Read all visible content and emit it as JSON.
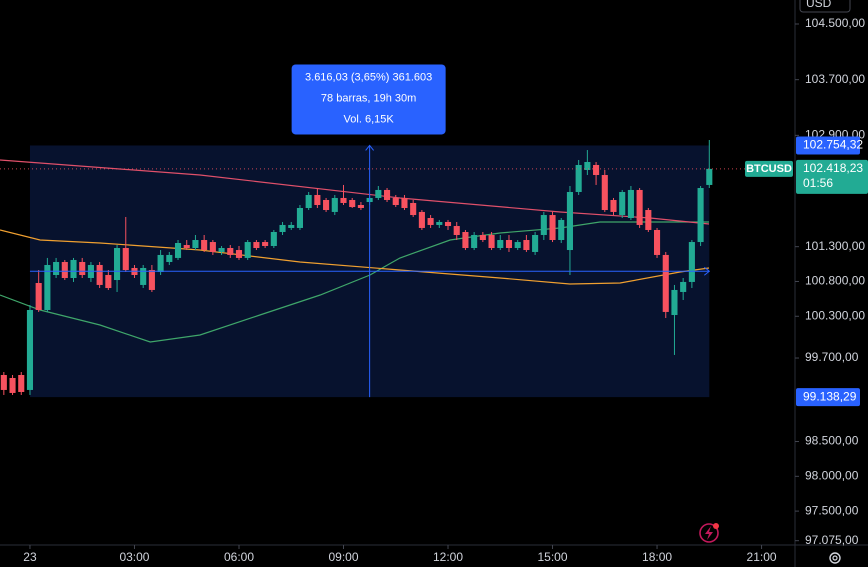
{
  "chart_data": {
    "type": "candlestick",
    "symbol": "BTCUSD",
    "currency": "USD",
    "countdown": "01:56",
    "up_color": "#22ab94",
    "down_color": "#f7525f",
    "x": [
      -0.75,
      -0.5,
      -0.25,
      0,
      0.25,
      0.5,
      0.75,
      1,
      1.25,
      1.5,
      1.75,
      2,
      2.25,
      2.5,
      2.75,
      3,
      3.25,
      3.5,
      3.75,
      4,
      4.25,
      4.5,
      4.75,
      5,
      5.25,
      5.5,
      5.75,
      6,
      6.25,
      6.5,
      6.75,
      7,
      7.25,
      7.5,
      7.75,
      8,
      8.25,
      8.5,
      8.75,
      9,
      9.25,
      9.5,
      9.75,
      10,
      10.25,
      10.5,
      10.75,
      11,
      11.25,
      11.5,
      11.75,
      12,
      12.25,
      12.5,
      12.75,
      13,
      13.25,
      13.5,
      13.75,
      14,
      14.25,
      14.5,
      14.75,
      15,
      15.25,
      15.5,
      15.75,
      16,
      16.25,
      16.5,
      16.75,
      17,
      17.25,
      17.5,
      17.75,
      18,
      18.25,
      18.5,
      18.75,
      19,
      19.25,
      19.5
    ],
    "open": [
      99456,
      99413,
      99456,
      99241,
      100778,
      100390,
      100893,
      101080,
      100850,
      101080,
      100850,
      101037,
      100893,
      100821,
      101281,
      100994,
      100750,
      100965,
      100936,
      101080,
      101138,
      101324,
      101281,
      101396,
      101367,
      101224,
      101281,
      101252,
      101138,
      101367,
      101367,
      101310,
      101511,
      101569,
      101569,
      101856,
      102043,
      101971,
      101799,
      102000,
      101971,
      101899,
      101942,
      102000,
      102115,
      102000,
      102000,
      101928,
      101799,
      101712,
      101612,
      101655,
      101597,
      101511,
      101281,
      101468,
      101468,
      101281,
      101396,
      101281,
      101396,
      101224,
      101468,
      101755,
      101396,
      101252,
      102086,
      102402,
      102474,
      102330,
      101971,
      101755,
      101712,
      102115,
      101827,
      101540,
      101181,
      100318,
      100649,
      100793,
      101367,
      102187
    ],
    "high": [
      99499,
      99456,
      99499,
      100462,
      100965,
      101138,
      101138,
      101109,
      101138,
      101138,
      101080,
      101080,
      100965,
      101324,
      101727,
      101037,
      101037,
      101037,
      101252,
      101224,
      101396,
      101396,
      101468,
      101468,
      101396,
      101310,
      101324,
      101310,
      101396,
      101396,
      101396,
      101540,
      101655,
      101655,
      101899,
      102086,
      102143,
      102000,
      102043,
      102187,
      102000,
      101942,
      102043,
      102172,
      102143,
      102043,
      102043,
      101971,
      101827,
      101755,
      101684,
      101684,
      101655,
      101540,
      101511,
      101511,
      101511,
      101468,
      101468,
      101396,
      101468,
      101511,
      101799,
      101799,
      101712,
      102172,
      102546,
      102689,
      102517,
      102402,
      102000,
      102115,
      102172,
      102143,
      101856,
      101569,
      101224,
      100750,
      100850,
      101396,
      102172,
      102833
    ],
    "low": [
      99169,
      99169,
      99169,
      99169,
      100362,
      100362,
      100850,
      100821,
      100793,
      100850,
      100793,
      100706,
      100678,
      100649,
      100936,
      100850,
      100706,
      100649,
      100893,
      101037,
      101109,
      101252,
      101252,
      101224,
      101181,
      101181,
      101138,
      101109,
      101109,
      101252,
      101281,
      101281,
      101468,
      101540,
      101540,
      101827,
      101856,
      101799,
      101755,
      101899,
      101856,
      101827,
      101899,
      101971,
      101942,
      101870,
      101827,
      101727,
      101540,
      101569,
      101569,
      101540,
      101396,
      101252,
      101252,
      101367,
      101252,
      101252,
      101224,
      101252,
      101224,
      101181,
      101396,
      101367,
      101353,
      100893,
      102043,
      102330,
      102187,
      101799,
      101755,
      101712,
      101684,
      101569,
      101511,
      101138,
      100275,
      99744,
      100534,
      100706,
      101310,
      102143
    ],
    "close": [
      99241,
      99198,
      99212,
      100390,
      100390,
      101037,
      101080,
      100850,
      101109,
      100893,
      101037,
      100750,
      100706,
      101281,
      100965,
      100893,
      100994,
      100678,
      101181,
      101181,
      101353,
      101281,
      101396,
      101252,
      101224,
      101281,
      101181,
      101138,
      101367,
      101281,
      101310,
      101511,
      101612,
      101612,
      101856,
      102043,
      101899,
      101827,
      102000,
      101928,
      101870,
      101856,
      102000,
      102115,
      101971,
      101899,
      101856,
      101755,
      101569,
      101612,
      101655,
      101597,
      101468,
      101281,
      101468,
      101396,
      101281,
      101396,
      101281,
      101367,
      101252,
      101468,
      101755,
      101396,
      101684,
      102086,
      102474,
      102517,
      102330,
      101827,
      101799,
      102086,
      102115,
      101612,
      101540,
      101181,
      100362,
      100678,
      100793,
      101367,
      102143,
      102418.23
    ],
    "overlays": [
      {
        "color": "#3fa66a",
        "x": [
          -0.86,
          0.29,
          2.01,
          3.45,
          4.88,
          6.6,
          8.33,
          9.76,
          10.62,
          12.06,
          13.49,
          15.22,
          16.36,
          17.8,
          19.49
        ],
        "values": [
          100606,
          100390,
          100175,
          99930,
          100031,
          100318,
          100606,
          100893,
          101138,
          101396,
          101497,
          101569,
          101655,
          101655,
          101655
        ]
      },
      {
        "color": "#f0a030",
        "x": [
          -0.86,
          0.29,
          2.01,
          4.88,
          7.75,
          10.62,
          13.49,
          15.5,
          16.94,
          18.66,
          19.49
        ],
        "values": [
          101540,
          101396,
          101353,
          101252,
          101080,
          100965,
          100850,
          100764,
          100778,
          100936,
          100994
        ]
      },
      {
        "color": "#e0506a",
        "x": [
          -0.86,
          4.88,
          10.62,
          15.22,
          17.8,
          19.49
        ],
        "values": [
          102546,
          102330,
          102000,
          101799,
          101712,
          101626
        ]
      }
    ],
    "xlim": [
      -0.86,
      21.96
    ],
    "xticks": [
      {
        "value": 0,
        "label": "23"
      },
      {
        "value": 3,
        "label": "03:00"
      },
      {
        "value": 6,
        "label": "06:00"
      },
      {
        "value": 9,
        "label": "09:00"
      },
      {
        "value": 12,
        "label": "12:00"
      },
      {
        "value": 15,
        "label": "15:00"
      },
      {
        "value": 18,
        "label": "18:00"
      },
      {
        "value": 21,
        "label": "21:00"
      }
    ],
    "ylim": [
      97013,
      104845
    ],
    "yticks": [
      {
        "value": 104500,
        "label": "104.500,00"
      },
      {
        "value": 103700,
        "label": "103.700,00"
      },
      {
        "value": 102900,
        "label": "102.900,00"
      },
      {
        "value": 101300,
        "label": "101.300,00"
      },
      {
        "value": 100800,
        "label": "100.800,00"
      },
      {
        "value": 100300,
        "label": "100.300,00"
      },
      {
        "value": 99700,
        "label": "99.700,00"
      },
      {
        "value": 98500,
        "label": "98.500,00"
      },
      {
        "value": 98000,
        "label": "98.000,00"
      },
      {
        "value": 97500,
        "label": "97.500,00"
      },
      {
        "value": 97075,
        "label": "97.075,00"
      }
    ],
    "last_price": {
      "value": 102418.23,
      "label": "102.418,23"
    },
    "measure": {
      "color": "#2962ff",
      "x_range": [
        0,
        19.5
      ],
      "top": {
        "value": 102754.32,
        "label": "102.754,32"
      },
      "bottom": {
        "value": 99138.29,
        "label": "99.138,29"
      },
      "lines": [
        "3.616,03 (3,65%) 361.603",
        "78 barras, 19h 30m",
        "Vol. 6,15K"
      ]
    }
  }
}
